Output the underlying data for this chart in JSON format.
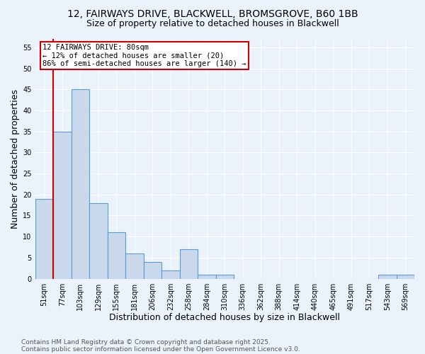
{
  "title_line1": "12, FAIRWAYS DRIVE, BLACKWELL, BROMSGROVE, B60 1BB",
  "title_line2": "Size of property relative to detached houses in Blackwell",
  "xlabel": "Distribution of detached houses by size in Blackwell",
  "ylabel": "Number of detached properties",
  "bar_labels": [
    "51sqm",
    "77sqm",
    "103sqm",
    "129sqm",
    "155sqm",
    "181sqm",
    "206sqm",
    "232sqm",
    "258sqm",
    "284sqm",
    "310sqm",
    "336sqm",
    "362sqm",
    "388sqm",
    "414sqm",
    "440sqm",
    "465sqm",
    "491sqm",
    "517sqm",
    "543sqm",
    "569sqm"
  ],
  "bar_heights": [
    19,
    35,
    45,
    18,
    11,
    6,
    4,
    2,
    7,
    1,
    1,
    0,
    0,
    0,
    0,
    0,
    0,
    0,
    0,
    1,
    1
  ],
  "bar_color": "#c9d9eb",
  "bar_edgecolor": "#5b9bd5",
  "bar_width": 1.0,
  "vline_x": 0.5,
  "vline_color": "#cc0000",
  "ylim": [
    0,
    57
  ],
  "yticks": [
    0,
    5,
    10,
    15,
    20,
    25,
    30,
    35,
    40,
    45,
    50,
    55
  ],
  "annotation_text": "12 FAIRWAYS DRIVE: 80sqm\n← 12% of detached houses are smaller (20)\n86% of semi-detached houses are larger (140) →",
  "annotation_box_color": "#ffffff",
  "annotation_box_edgecolor": "#cc0000",
  "footer_line1": "Contains HM Land Registry data © Crown copyright and database right 2025.",
  "footer_line2": "Contains public sector information licensed under the Open Government Licence v3.0.",
  "bg_color": "#eaf2fb",
  "plot_bg_color": "#eaf2fb",
  "grid_color": "#ffffff",
  "title_fontsize": 10,
  "subtitle_fontsize": 9,
  "tick_fontsize": 7,
  "label_fontsize": 9,
  "annotation_fontsize": 7.5,
  "footer_fontsize": 6.5
}
